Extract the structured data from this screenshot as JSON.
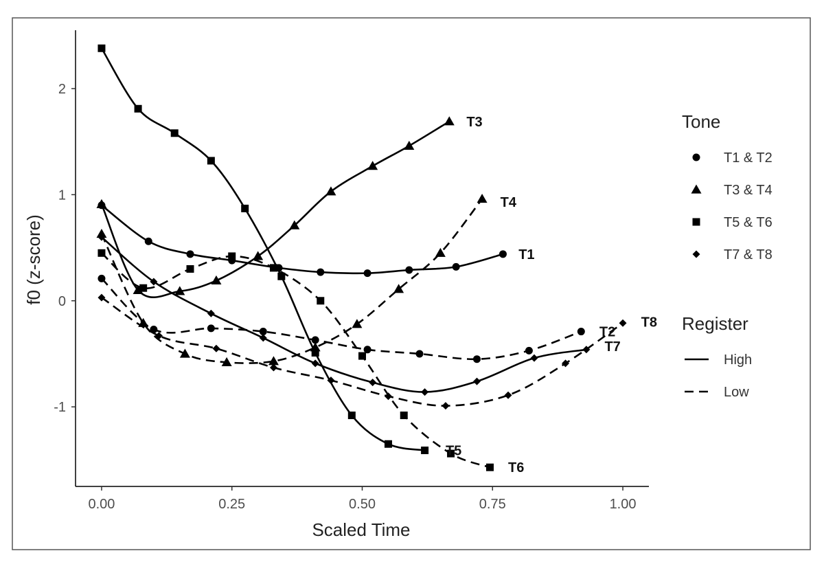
{
  "chart_data": {
    "type": "line",
    "xlabel": "Scaled Time",
    "ylabel": "f0 (z-score)",
    "xlim": [
      -0.05,
      1.05
    ],
    "ylim": [
      -1.75,
      2.55
    ],
    "x_ticks": [
      0.0,
      0.25,
      0.5,
      0.75,
      1.0
    ],
    "x_tick_labels": [
      "0.00",
      "0.25",
      "0.50",
      "0.75",
      "1.00"
    ],
    "y_ticks": [
      -1,
      0,
      1,
      2
    ],
    "y_tick_labels": [
      "-1",
      "0",
      "1",
      "2"
    ],
    "grid": false,
    "legend_position": "right",
    "legend": {
      "tone_title": "Tone",
      "tone_items": [
        {
          "label": "T1 & T2",
          "shape": "circle"
        },
        {
          "label": "T3 & T4",
          "shape": "triangle"
        },
        {
          "label": "T5 & T6",
          "shape": "square"
        },
        {
          "label": "T7 & T8",
          "shape": "diamond"
        }
      ],
      "register_title": "Register",
      "register_items": [
        {
          "label": "High",
          "linetype": "solid"
        },
        {
          "label": "Low",
          "linetype": "dashed"
        }
      ]
    },
    "series": [
      {
        "name": "T1",
        "shape": "circle",
        "register": "High",
        "x": [
          0.0,
          0.09,
          0.17,
          0.25,
          0.34,
          0.42,
          0.51,
          0.59,
          0.68,
          0.77
        ],
        "y": [
          0.9,
          0.56,
          0.44,
          0.38,
          0.31,
          0.27,
          0.26,
          0.29,
          0.32,
          0.44
        ]
      },
      {
        "name": "T2",
        "shape": "circle",
        "register": "Low",
        "x": [
          0.0,
          0.1,
          0.21,
          0.31,
          0.41,
          0.51,
          0.61,
          0.72,
          0.82,
          0.92
        ],
        "y": [
          0.21,
          -0.27,
          -0.26,
          -0.29,
          -0.37,
          -0.46,
          -0.5,
          -0.55,
          -0.47,
          -0.29
        ]
      },
      {
        "name": "T3",
        "shape": "triangle",
        "register": "High",
        "x": [
          0.0,
          0.07,
          0.15,
          0.22,
          0.3,
          0.37,
          0.44,
          0.52,
          0.59,
          0.667
        ],
        "y": [
          0.91,
          0.1,
          0.09,
          0.19,
          0.42,
          0.71,
          1.03,
          1.27,
          1.46,
          1.69
        ]
      },
      {
        "name": "T4",
        "shape": "triangle",
        "register": "Low",
        "x": [
          0.0,
          0.08,
          0.16,
          0.24,
          0.33,
          0.41,
          0.49,
          0.57,
          0.65,
          0.73
        ],
        "y": [
          0.63,
          -0.21,
          -0.5,
          -0.58,
          -0.57,
          -0.44,
          -0.22,
          0.11,
          0.45,
          0.96
        ]
      },
      {
        "name": "T5",
        "shape": "square",
        "register": "High",
        "x": [
          0.0,
          0.07,
          0.14,
          0.21,
          0.275,
          0.345,
          0.41,
          0.48,
          0.55,
          0.62
        ],
        "y": [
          2.38,
          1.81,
          1.58,
          1.32,
          0.87,
          0.23,
          -0.49,
          -1.08,
          -1.35,
          -1.41
        ]
      },
      {
        "name": "T6",
        "shape": "square",
        "register": "Low",
        "x": [
          0.0,
          0.08,
          0.17,
          0.25,
          0.33,
          0.42,
          0.5,
          0.58,
          0.67,
          0.745
        ],
        "y": [
          0.45,
          0.12,
          0.3,
          0.42,
          0.31,
          0.0,
          -0.52,
          -1.08,
          -1.44,
          -1.57
        ]
      },
      {
        "name": "T7",
        "shape": "diamond",
        "register": "High",
        "x": [
          0.0,
          0.1,
          0.21,
          0.31,
          0.41,
          0.52,
          0.62,
          0.72,
          0.83,
          0.93
        ],
        "y": [
          0.6,
          0.18,
          -0.12,
          -0.35,
          -0.59,
          -0.77,
          -0.86,
          -0.76,
          -0.54,
          -0.46
        ]
      },
      {
        "name": "T8",
        "shape": "diamond",
        "register": "Low",
        "x": [
          0.0,
          0.11,
          0.22,
          0.33,
          0.44,
          0.55,
          0.66,
          0.78,
          0.89,
          1.0
        ],
        "y": [
          0.03,
          -0.33,
          -0.45,
          -0.63,
          -0.75,
          -0.9,
          -0.99,
          -0.89,
          -0.59,
          -0.21
        ]
      }
    ],
    "end_labels": [
      {
        "text": "T1",
        "x": 0.8,
        "y": 0.44
      },
      {
        "text": "T2",
        "x": 0.955,
        "y": -0.29
      },
      {
        "text": "T3",
        "x": 0.7,
        "y": 1.69
      },
      {
        "text": "T4",
        "x": 0.765,
        "y": 0.93
      },
      {
        "text": "T5",
        "x": 0.66,
        "y": -1.41
      },
      {
        "text": "T6",
        "x": 0.78,
        "y": -1.57
      },
      {
        "text": "T7",
        "x": 0.965,
        "y": -0.43
      },
      {
        "text": "T8",
        "x": 1.035,
        "y": -0.2
      }
    ]
  }
}
